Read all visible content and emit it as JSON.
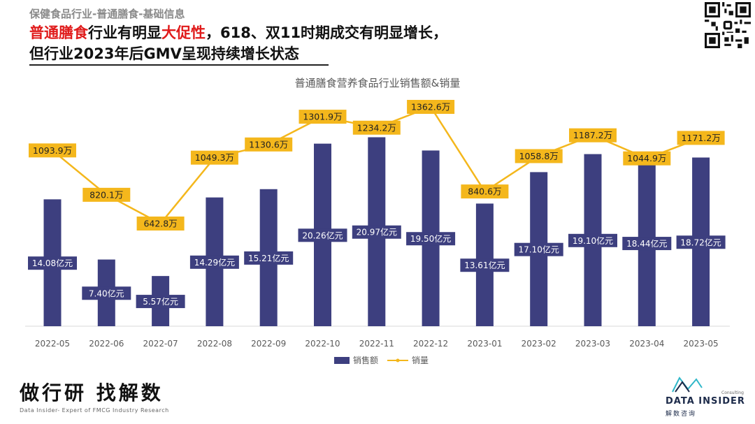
{
  "header": {
    "breadcrumb": "保健食品行业-普通膳食-基础信息",
    "headline_part1": "普通膳食",
    "headline_part2": "行业有明显",
    "headline_part3": "大促性",
    "headline_part4": "，618、双11时期成交有明显增长，",
    "headline_line2": "但行业2023年后GMV呈现持续增长状态"
  },
  "colors": {
    "bar": "#3d3f7f",
    "line": "#f4b71c",
    "highlight": "#e01b1b"
  },
  "chart_data": {
    "type": "bar",
    "title": "普通膳食营养食品行业销售额&销量",
    "categories": [
      "2022-05",
      "2022-06",
      "2022-07",
      "2022-08",
      "2022-09",
      "2022-10",
      "2022-11",
      "2022-12",
      "2023-01",
      "2023-02",
      "2023-03",
      "2023-04",
      "2023-05"
    ],
    "series": [
      {
        "name": "销售额",
        "kind": "bar",
        "values": [
          14.08,
          7.4,
          5.57,
          14.29,
          15.21,
          20.26,
          20.97,
          19.5,
          13.61,
          17.1,
          19.1,
          18.44,
          18.72
        ],
        "labels": [
          "14.08亿元",
          "7.40亿元",
          "5.57亿元",
          "14.29亿元",
          "15.21亿元",
          "20.26亿元",
          "20.97亿元",
          "19.50亿元",
          "13.61亿元",
          "17.10亿元",
          "19.10亿元",
          "18.44亿元",
          "18.72亿元"
        ]
      },
      {
        "name": "销量",
        "kind": "line",
        "values": [
          1093.9,
          820.1,
          642.8,
          1049.3,
          1130.6,
          1301.9,
          1234.2,
          1362.6,
          840.6,
          1058.8,
          1187.2,
          1044.9,
          1171.2
        ],
        "labels": [
          "1093.9万",
          "820.1万",
          "642.8万",
          "1049.3万",
          "1130.6万",
          "1301.9万",
          "1234.2万",
          "1362.6万",
          "840.6万",
          "1058.8万",
          "1187.2万",
          "1044.9万",
          "1171.2万"
        ]
      }
    ],
    "legend_position": "bottom",
    "grid": false
  },
  "footer": {
    "slogan": "做行研 找解数",
    "slogan_sub": "Data Insider- Expert of FMCG Industry Research",
    "logo_consult": "Consulting",
    "logo_text": "DATA INSIDER",
    "logo_cn": "解数咨询"
  }
}
